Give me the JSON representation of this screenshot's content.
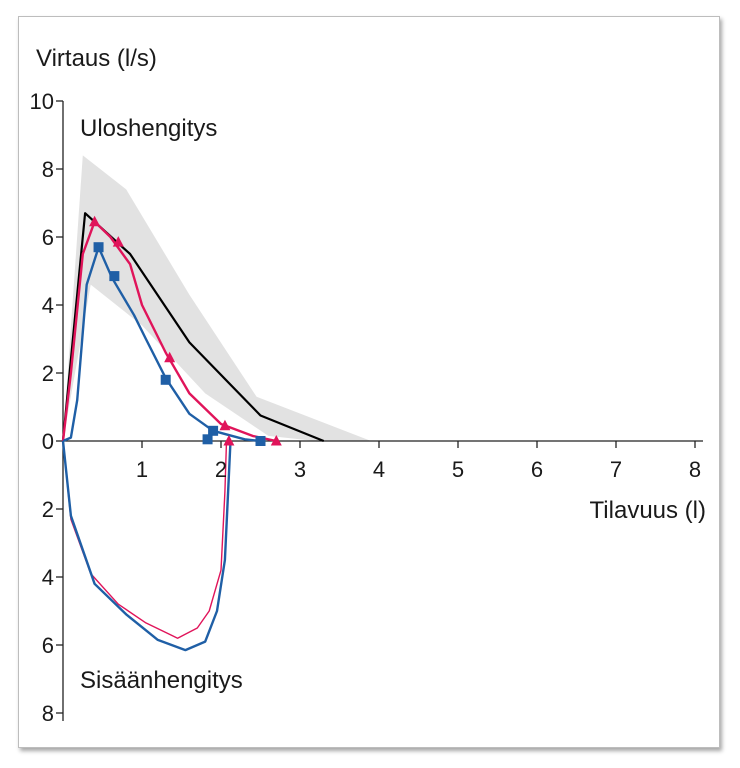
{
  "chart_data": {
    "type": "line",
    "ylabel": "Virtaus (l/s)",
    "xlabel": "Tilavuus (l)",
    "annotations": {
      "top": "Uloshengitys",
      "bottom": "Sisäänhengitys"
    },
    "x_ticks": [
      "1",
      "2",
      "3",
      "4",
      "5",
      "6",
      "7",
      "8"
    ],
    "y_ticks_up": [
      "0",
      "2",
      "4",
      "6",
      "8",
      "10"
    ],
    "y_ticks_down": [
      "2",
      "4",
      "6",
      "8"
    ],
    "xlim": [
      0,
      8
    ],
    "ylim": [
      -8,
      10
    ],
    "colors": {
      "reference": "#000000",
      "band": "#e2e2e2",
      "red": "#e0145a",
      "blue": "#1f5fa6",
      "axis": "#222222"
    },
    "reference_band": {
      "upper": [
        [
          0,
          0
        ],
        [
          0.25,
          8.4
        ],
        [
          0.8,
          7.4
        ],
        [
          1.6,
          4.3
        ],
        [
          2.45,
          1.3
        ],
        [
          3.9,
          0
        ]
      ],
      "lower": [
        [
          0,
          0
        ],
        [
          0.35,
          4.6
        ],
        [
          1.0,
          3.4
        ],
        [
          1.8,
          1.4
        ],
        [
          2.6,
          0.15
        ],
        [
          3.2,
          0
        ]
      ]
    },
    "series": [
      {
        "name": "reference",
        "marker": "none",
        "points": [
          [
            0,
            0
          ],
          [
            0.28,
            6.7
          ],
          [
            0.85,
            5.5
          ],
          [
            1.6,
            2.9
          ],
          [
            2.5,
            0.75
          ],
          [
            3.3,
            0
          ]
        ]
      },
      {
        "name": "red",
        "marker": "triangle",
        "points": [
          [
            0,
            0
          ],
          [
            0.1,
            2.0
          ],
          [
            0.25,
            5.5
          ],
          [
            0.4,
            6.45
          ],
          [
            0.6,
            6.0
          ],
          [
            0.85,
            5.2
          ],
          [
            1.0,
            4.0
          ],
          [
            1.3,
            2.6
          ],
          [
            1.6,
            1.4
          ],
          [
            2.0,
            0.5
          ],
          [
            2.4,
            0.15
          ],
          [
            2.7,
            0
          ]
        ],
        "marker_points": [
          [
            0.4,
            6.45
          ],
          [
            0.7,
            5.85
          ],
          [
            1.35,
            2.45
          ],
          [
            2.05,
            0.45
          ],
          [
            2.7,
            0
          ]
        ],
        "inspiration": [
          [
            0,
            0
          ],
          [
            0.1,
            -2.3
          ],
          [
            0.35,
            -3.9
          ],
          [
            0.7,
            -4.8
          ],
          [
            1.05,
            -5.35
          ],
          [
            1.45,
            -5.8
          ],
          [
            1.7,
            -5.5
          ],
          [
            1.85,
            -5.0
          ],
          [
            2.0,
            -3.8
          ],
          [
            2.05,
            -1.5
          ],
          [
            2.07,
            0
          ]
        ],
        "inspiration_marker": [
          2.1,
          0
        ]
      },
      {
        "name": "blue",
        "marker": "square",
        "points": [
          [
            0,
            0
          ],
          [
            0.1,
            0.1
          ],
          [
            0.18,
            1.2
          ],
          [
            0.3,
            4.6
          ],
          [
            0.45,
            5.7
          ],
          [
            0.62,
            4.8
          ],
          [
            0.9,
            3.7
          ],
          [
            1.05,
            3.0
          ],
          [
            1.3,
            1.85
          ],
          [
            1.6,
            0.8
          ],
          [
            1.9,
            0.3
          ],
          [
            2.3,
            0.05
          ],
          [
            2.5,
            0
          ]
        ],
        "marker_points": [
          [
            0.45,
            5.7
          ],
          [
            0.65,
            4.85
          ],
          [
            1.3,
            1.8
          ],
          [
            1.9,
            0.3
          ],
          [
            1.83,
            0.05
          ],
          [
            2.5,
            0
          ]
        ],
        "inspiration": [
          [
            0,
            0
          ],
          [
            0.1,
            -2.2
          ],
          [
            0.4,
            -4.2
          ],
          [
            0.8,
            -5.1
          ],
          [
            1.2,
            -5.85
          ],
          [
            1.55,
            -6.15
          ],
          [
            1.8,
            -5.9
          ],
          [
            1.95,
            -5.0
          ],
          [
            2.05,
            -3.5
          ],
          [
            2.1,
            -1.0
          ],
          [
            2.12,
            0
          ]
        ]
      }
    ]
  }
}
